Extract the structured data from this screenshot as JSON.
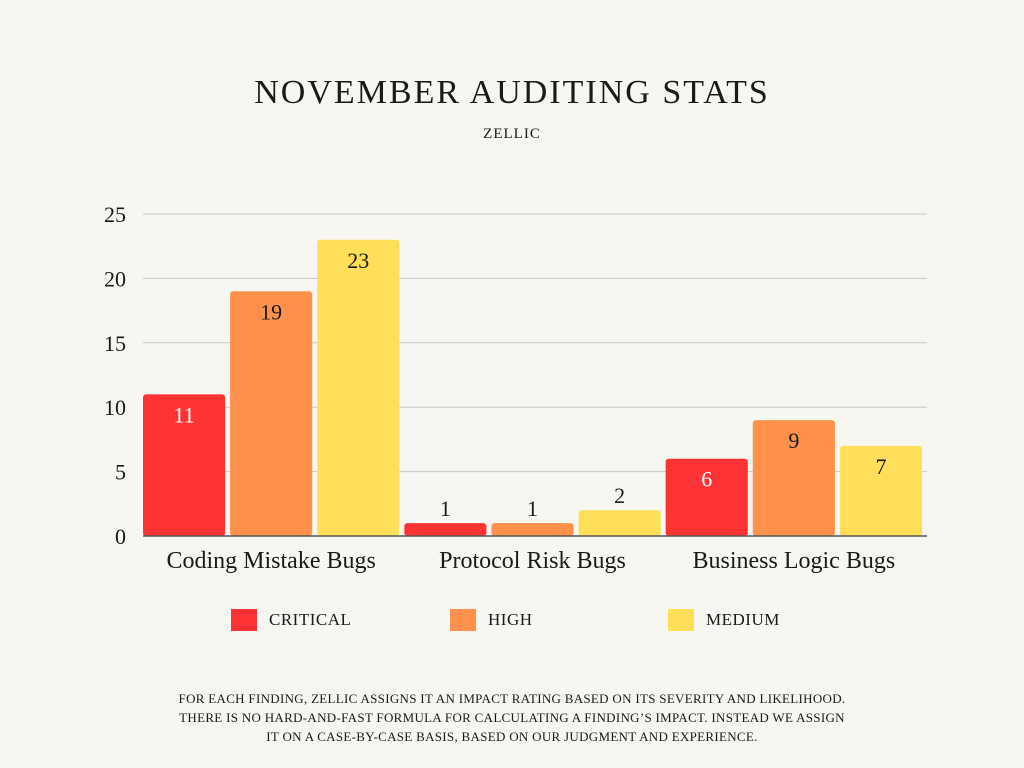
{
  "chart_data": {
    "type": "bar",
    "title": "NOVEMBER AUDITING STATS",
    "subtitle": "ZELLIC",
    "categories": [
      "Coding Mistake Bugs",
      "Protocol Risk Bugs",
      "Business Logic Bugs"
    ],
    "series": [
      {
        "name": "CRITICAL",
        "color": "#ff3333",
        "values": [
          11,
          1,
          6
        ]
      },
      {
        "name": "HIGH",
        "color": "#ff914d",
        "values": [
          19,
          1,
          9
        ]
      },
      {
        "name": "MEDIUM",
        "color": "#ffde59",
        "values": [
          23,
          2,
          7
        ]
      }
    ],
    "y_ticks": [
      0,
      5,
      10,
      15,
      20,
      25
    ],
    "ylim": [
      0,
      25
    ],
    "grid": true,
    "legend_position": "bottom",
    "xlabel": "",
    "ylabel": ""
  },
  "footnote": [
    "FOR EACH FINDING, ZELLIC ASSIGNS IT AN IMPACT RATING BASED ON ITS SEVERITY AND LIKELIHOOD.",
    "THERE IS NO HARD-AND-FAST FORMULA FOR CALCULATING A FINDING’S IMPACT. INSTEAD WE ASSIGN",
    "IT ON A CASE-BY-CASE BASIS, BASED ON OUR JUDGMENT AND EXPERIENCE."
  ]
}
